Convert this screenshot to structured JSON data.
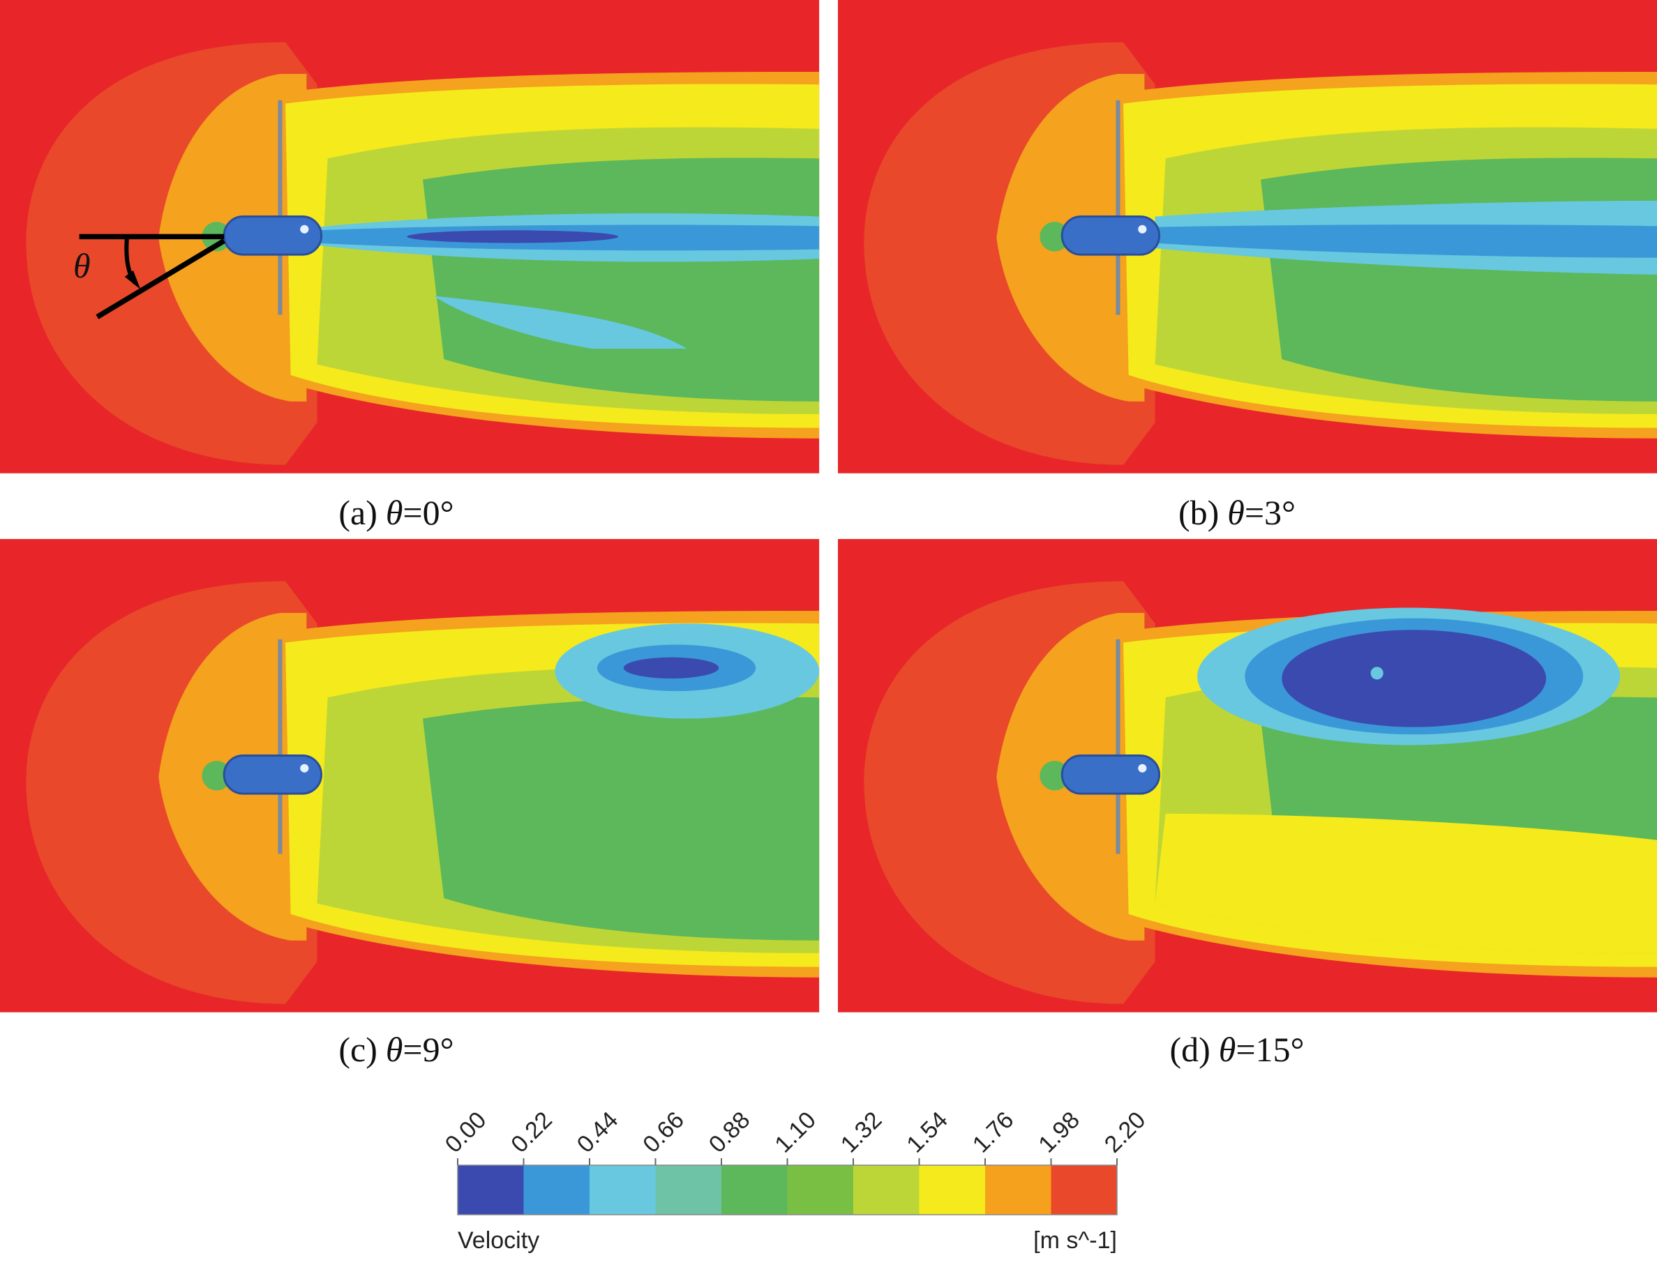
{
  "panels": [
    {
      "label": "(a)",
      "symbol": "θ",
      "value": "=0°"
    },
    {
      "label": "(b)",
      "symbol": "θ",
      "value": "=3°"
    },
    {
      "label": "(c)",
      "symbol": "θ",
      "value": "=9°"
    },
    {
      "label": "(d)",
      "symbol": "θ",
      "value": "=15°"
    }
  ],
  "annotation": "θ",
  "colorbar": {
    "title": "Velocity",
    "unit": "[m s^-1]",
    "ticks": [
      {
        "value": 0,
        "label": "0.00"
      },
      {
        "value": 0.22,
        "label": "0.22"
      },
      {
        "value": 0.44,
        "label": "0.44"
      },
      {
        "value": 0.66,
        "label": "0.66"
      },
      {
        "value": 0.88,
        "label": "0.88"
      },
      {
        "value": 1.1,
        "label": "1.10"
      },
      {
        "value": 1.32,
        "label": "1.32"
      },
      {
        "value": 1.54,
        "label": "1.54"
      },
      {
        "value": 1.76,
        "label": "1.76"
      },
      {
        "value": 1.98,
        "label": "1.98"
      },
      {
        "value": 2.2,
        "label": "2.20"
      }
    ],
    "colors": [
      "#3b4aae",
      "#3b98d8",
      "#67c8e0",
      "#6ec3a6",
      "#5cb85a",
      "#79bf44",
      "#bdd637",
      "#f5ea1b",
      "#f6a11d",
      "#e9492a"
    ]
  }
}
